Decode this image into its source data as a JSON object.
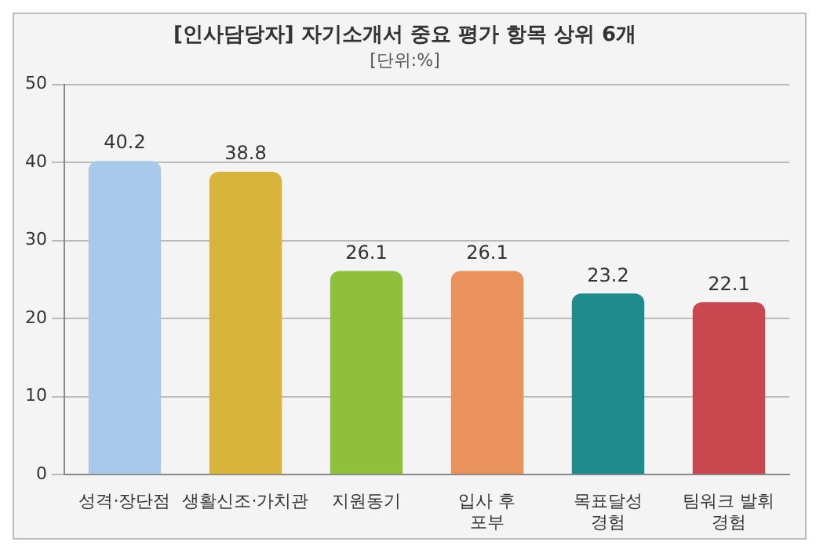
{
  "chart_data": {
    "type": "bar",
    "title": "[인사담당자] 자기소개서 중요 평가 항목 상위 6개",
    "subtitle": "[단위:%]",
    "categories": [
      "성격·장단점",
      "생활신조·가치관",
      "지원동기",
      "입사 후 포부",
      "목표달성 경험",
      "팀워크 발휘 경험"
    ],
    "values": [
      40.2,
      38.8,
      26.1,
      26.1,
      23.2,
      22.1
    ],
    "colors": [
      "#a9c9ea",
      "#d8b43a",
      "#8fc03c",
      "#e9925c",
      "#1e8c8c",
      "#c9474f"
    ],
    "ylim": [
      0,
      50
    ],
    "yticks": [
      0,
      10,
      20,
      30,
      40,
      50
    ],
    "grid": "y",
    "data_labels": true,
    "legend": false
  }
}
